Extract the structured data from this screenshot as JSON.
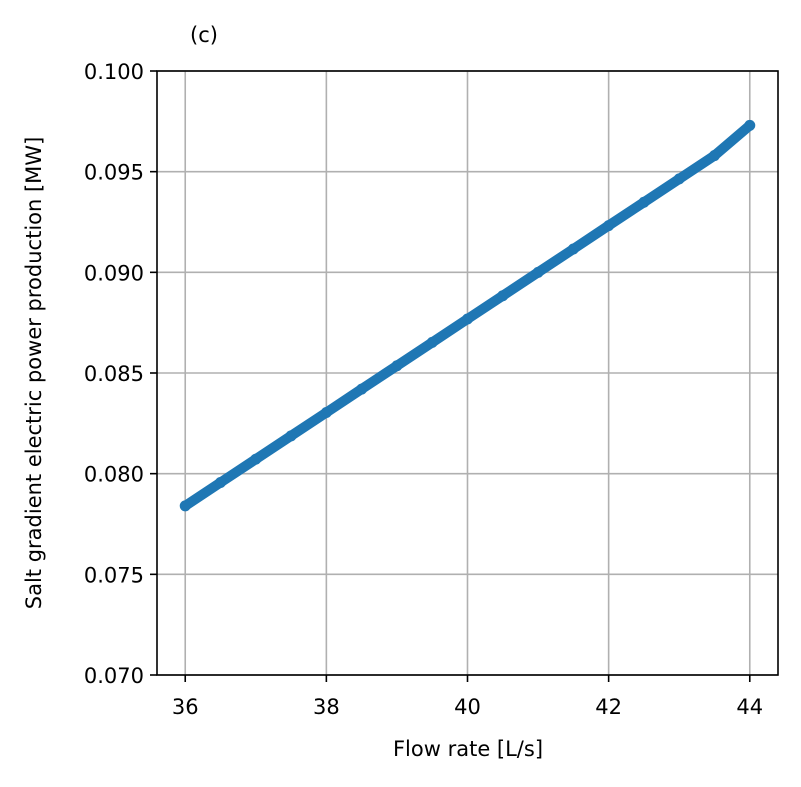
{
  "chart_data": {
    "type": "scatter",
    "panel_label": "(c)",
    "xlabel": "Flow rate [L/s]",
    "ylabel": "Salt gradient electric power production [MW]",
    "xlim": [
      35.6,
      44.4
    ],
    "ylim": [
      0.07,
      0.1
    ],
    "xticks": [
      36,
      38,
      40,
      42,
      44
    ],
    "xtick_labels": [
      "36",
      "38",
      "40",
      "42",
      "44"
    ],
    "yticks": [
      0.07,
      0.075,
      0.08,
      0.085,
      0.09,
      0.095,
      0.1
    ],
    "ytick_labels": [
      "0.070",
      "0.075",
      "0.080",
      "0.085",
      "0.090",
      "0.095",
      "0.100"
    ],
    "grid": true,
    "series": [
      {
        "color": "#1f77b4",
        "x": [
          36.0,
          36.5,
          37.0,
          37.5,
          38.0,
          38.5,
          39.0,
          39.5,
          40.0,
          40.5,
          41.0,
          41.5,
          42.0,
          42.5,
          43.0,
          43.5,
          44.0
        ],
        "y": [
          0.0784,
          0.07956,
          0.08072,
          0.08188,
          0.08304,
          0.0842,
          0.08536,
          0.08652,
          0.08768,
          0.08884,
          0.09,
          0.09116,
          0.09232,
          0.09348,
          0.09464,
          0.0958,
          0.0973
        ]
      }
    ]
  }
}
